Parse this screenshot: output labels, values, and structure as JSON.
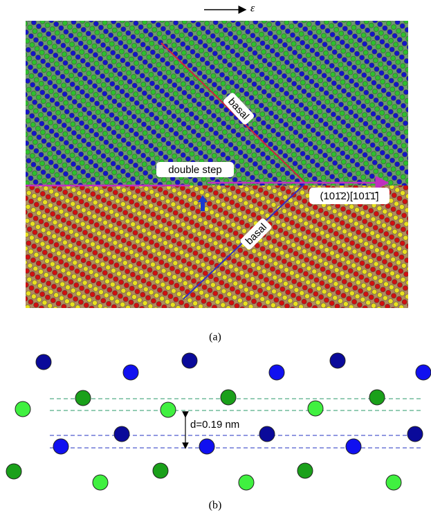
{
  "figure": {
    "strain_label": "ε",
    "panel_a": {
      "basal_upper": "basal",
      "basal_lower": "basal",
      "double_step": "double step",
      "twin_label": "(101̄2)[101̄1̄]",
      "caption": "(a)"
    },
    "panel_b": {
      "spacing_label": "d=0.19 nm",
      "caption": "(b)"
    }
  }
}
